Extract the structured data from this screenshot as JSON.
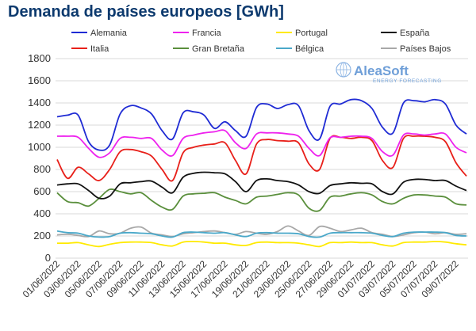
{
  "chart_data": {
    "type": "line",
    "title": "Demanda de países europeos [GWh]",
    "ylim": [
      0,
      1800
    ],
    "yticks": [
      0,
      200,
      400,
      600,
      800,
      1000,
      1200,
      1400,
      1600,
      1800
    ],
    "grid": true,
    "legend_position": "top",
    "x": [
      "01/06/2022",
      "02/06/2022",
      "03/06/2022",
      "04/06/2022",
      "05/06/2022",
      "06/06/2022",
      "07/06/2022",
      "08/06/2022",
      "09/06/2022",
      "10/06/2022",
      "11/06/2022",
      "12/06/2022",
      "13/06/2022",
      "14/06/2022",
      "15/06/2022",
      "16/06/2022",
      "17/06/2022",
      "18/06/2022",
      "19/06/2022",
      "20/06/2022",
      "21/06/2022",
      "22/06/2022",
      "23/06/2022",
      "24/06/2022",
      "25/06/2022",
      "26/06/2022",
      "27/06/2022",
      "28/06/2022",
      "29/06/2022",
      "30/06/2022",
      "01/07/2022",
      "02/07/2022",
      "03/07/2022",
      "04/07/2022",
      "05/07/2022",
      "06/07/2022",
      "07/07/2022",
      "08/07/2022",
      "09/07/2022",
      "10/07/2022"
    ],
    "x_tick_labels": [
      "01/06/2022",
      "03/06/2022",
      "05/06/2022",
      "07/06/2022",
      "09/06/2022",
      "11/06/2022",
      "13/06/2022",
      "15/06/2022",
      "17/06/2022",
      "19/06/2022",
      "21/06/2022",
      "23/06/2022",
      "25/06/2022",
      "27/06/2022",
      "29/06/2022",
      "01/07/2022",
      "03/07/2022",
      "05/07/2022",
      "07/07/2022",
      "09/07/2022"
    ],
    "series": [
      {
        "name": "Alemania",
        "color": "#1f2bd4",
        "values": [
          1275,
          1290,
          1290,
          1050,
          975,
          1020,
          1300,
          1375,
          1355,
          1300,
          1150,
          1075,
          1310,
          1320,
          1290,
          1170,
          1230,
          1150,
          1100,
          1360,
          1390,
          1350,
          1385,
          1375,
          1150,
          1075,
          1370,
          1390,
          1430,
          1420,
          1350,
          1180,
          1130,
          1400,
          1420,
          1410,
          1430,
          1390,
          1200,
          1120
        ]
      },
      {
        "name": "Francia",
        "color": "#ee22ee",
        "values": [
          1100,
          1100,
          1090,
          990,
          910,
          950,
          1080,
          1090,
          1080,
          1080,
          975,
          925,
          1080,
          1110,
          1130,
          1140,
          1150,
          1040,
          990,
          1120,
          1130,
          1130,
          1120,
          1100,
          990,
          925,
          1085,
          1090,
          1100,
          1100,
          1080,
          960,
          930,
          1110,
          1120,
          1110,
          1120,
          1120,
          1000,
          950
        ]
      },
      {
        "name": "Portugal",
        "color": "#ffea00",
        "values": [
          135,
          135,
          140,
          120,
          105,
          125,
          140,
          145,
          145,
          140,
          120,
          110,
          145,
          150,
          145,
          135,
          135,
          120,
          115,
          140,
          145,
          140,
          140,
          135,
          120,
          105,
          140,
          140,
          145,
          140,
          140,
          120,
          110,
          140,
          145,
          145,
          150,
          145,
          130,
          120
        ]
      },
      {
        "name": "España",
        "color": "#111111",
        "values": [
          660,
          670,
          670,
          610,
          540,
          560,
          670,
          680,
          690,
          695,
          640,
          590,
          730,
          765,
          775,
          770,
          760,
          690,
          600,
          700,
          715,
          700,
          690,
          660,
          600,
          585,
          655,
          670,
          680,
          675,
          670,
          600,
          580,
          685,
          710,
          710,
          700,
          700,
          650,
          610
        ]
      },
      {
        "name": "Italia",
        "color": "#e8201a",
        "values": [
          890,
          720,
          820,
          760,
          700,
          800,
          960,
          980,
          960,
          920,
          800,
          700,
          950,
          1000,
          1020,
          1030,
          1040,
          880,
          760,
          1030,
          1070,
          1060,
          1055,
          1040,
          850,
          800,
          1080,
          1090,
          1080,
          1090,
          1060,
          880,
          820,
          1080,
          1100,
          1100,
          1090,
          1050,
          860,
          740
        ]
      },
      {
        "name": "Gran Bretaña",
        "color": "#5a8f3c",
        "values": [
          590,
          510,
          500,
          470,
          540,
          620,
          600,
          580,
          590,
          520,
          460,
          440,
          560,
          580,
          585,
          590,
          550,
          520,
          490,
          550,
          560,
          575,
          590,
          570,
          450,
          430,
          550,
          560,
          580,
          590,
          570,
          510,
          490,
          540,
          570,
          570,
          560,
          550,
          490,
          480
        ]
      },
      {
        "name": "Bélgica",
        "color": "#4aa8c9",
        "values": [
          245,
          230,
          225,
          200,
          190,
          195,
          225,
          230,
          225,
          220,
          200,
          190,
          230,
          235,
          230,
          225,
          230,
          210,
          195,
          225,
          230,
          225,
          225,
          220,
          195,
          190,
          225,
          230,
          230,
          230,
          225,
          205,
          195,
          225,
          235,
          235,
          235,
          230,
          205,
          200
        ]
      },
      {
        "name": "Países Bajos",
        "color": "#a8a8a8",
        "values": [
          210,
          215,
          205,
          195,
          245,
          220,
          225,
          270,
          280,
          225,
          210,
          195,
          220,
          230,
          240,
          245,
          230,
          215,
          240,
          225,
          215,
          240,
          290,
          245,
          205,
          285,
          270,
          240,
          255,
          270,
          230,
          215,
          195,
          210,
          230,
          235,
          220,
          230,
          215,
          220
        ]
      }
    ]
  },
  "logo": {
    "main": "AleaSoft",
    "sub": "ENERGY FORECASTING"
  }
}
